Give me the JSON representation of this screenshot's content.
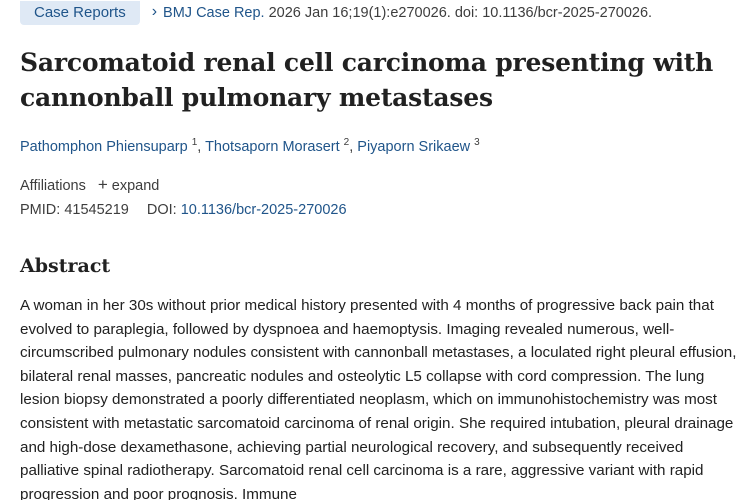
{
  "header": {
    "badge_label": "Case Reports",
    "chevron_icon": "chevron-right-icon",
    "journal_label": "BMJ Case Rep.",
    "citation_rest": "2026 Jan 16;19(1):e270026. doi: 10.1136/bcr-2025-270026."
  },
  "article": {
    "title": "Sarcomatoid renal cell carcinoma presenting with cannonball pulmonary metastases",
    "authors": [
      {
        "name": "Pathomphon Phiensuparp",
        "sup": "1"
      },
      {
        "name": "Thotsaporn Morasert",
        "sup": "2"
      },
      {
        "name": "Piyaporn Srikaew",
        "sup": "3"
      }
    ],
    "separator": ",",
    "affiliations_label": "Affiliations",
    "expand_icon": "plus-icon",
    "expand_label": "expand",
    "pmid_label": "PMID:",
    "pmid_value": "41545219",
    "doi_label": "DOI:",
    "doi_value": "10.1136/bcr-2025-270026"
  },
  "abstract": {
    "heading": "Abstract",
    "text": "A woman in her 30s without prior medical history presented with 4 months of progressive back pain that evolved to paraplegia, followed by dyspnoea and haemoptysis. Imaging revealed numerous, well-circumscribed pulmonary nodules consistent with cannonball metastases, a loculated right pleural effusion, bilateral renal masses, pancreatic nodules and osteolytic L5 collapse with cord compression. The lung lesion biopsy demonstrated a poorly differentiated neoplasm, which on immunohistochemistry was most consistent with metastatic sarcomatoid carcinoma of renal origin. She required intubation, pleural drainage and high-dose dexamethasone, achieving partial neurological recovery, and subsequently received palliative spinal radiotherapy. Sarcomatoid renal cell carcinoma is a rare, aggressive variant with rapid progression and poor prognosis. Immune"
  },
  "colors": {
    "link": "#20558a",
    "badge_bg": "#dfe9f5",
    "text": "#212121"
  }
}
